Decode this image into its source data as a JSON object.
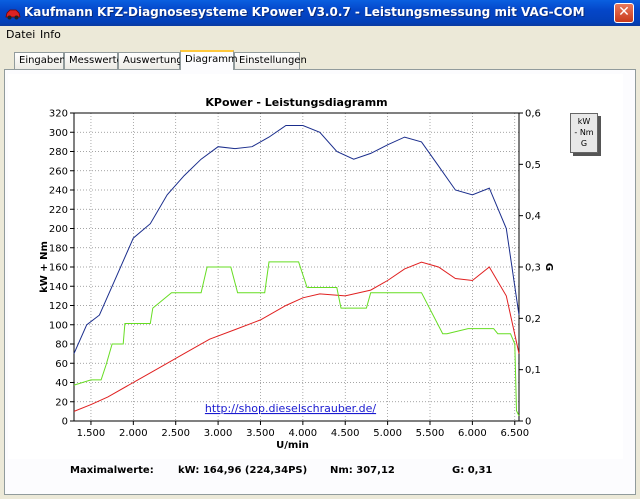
{
  "window": {
    "title": "Kaufmann KFZ-Diagnosesysteme  KPower V3.0.7 - Leistungsmessung mit VAG-COM",
    "close_glyph": "✕"
  },
  "menu": {
    "items": [
      "Datei",
      "Info"
    ]
  },
  "tabs": [
    {
      "label": "Eingaben",
      "active": false
    },
    {
      "label": "Messwerte",
      "active": false
    },
    {
      "label": "Auswertung",
      "active": false
    },
    {
      "label": "Diagramm",
      "active": true
    },
    {
      "label": "Einstellungen",
      "active": false
    }
  ],
  "legend": {
    "items": [
      "kW",
      "- Nm",
      "G"
    ]
  },
  "link": "http://shop.dieselschrauber.de/",
  "status": {
    "label": "Maximalwerte:",
    "kw": "kW: 164,96 (224,34PS)",
    "nm": "Nm: 307,12",
    "g": "G: 0,31"
  },
  "colors": {
    "kw": "#e02020",
    "nm": "#1a2d8c",
    "g": "#66dd22"
  },
  "chart_data": {
    "type": "line",
    "title": "KPower - Leistungsdiagramm",
    "xlabel": "U/min",
    "ylabel_left": "kW + Nm",
    "ylabel_right": "G",
    "xlim": [
      1300,
      6550
    ],
    "ylim_left": [
      0,
      320
    ],
    "ylim_right": [
      0,
      0.6
    ],
    "grid": true,
    "x_ticks": [
      "1.500",
      "2.000",
      "2.500",
      "3.000",
      "3.500",
      "4.000",
      "4.500",
      "5.000",
      "5.500",
      "6.000",
      "6.500"
    ],
    "x_tick_values": [
      1500,
      2000,
      2500,
      3000,
      3500,
      4000,
      4500,
      5000,
      5500,
      6000,
      6500
    ],
    "y_ticks_left": [
      "0",
      "20",
      "40",
      "60",
      "80",
      "100",
      "120",
      "140",
      "160",
      "180",
      "200",
      "220",
      "240",
      "260",
      "280",
      "300",
      "320"
    ],
    "y_tick_values_left": [
      0,
      20,
      40,
      60,
      80,
      100,
      120,
      140,
      160,
      180,
      200,
      220,
      240,
      260,
      280,
      300,
      320
    ],
    "y_ticks_right": [
      "0",
      "0,1",
      "0,2",
      "0,3",
      "0,4",
      "0,5",
      "0,6"
    ],
    "y_tick_values_right": [
      0,
      0.1,
      0.2,
      0.3,
      0.4,
      0.5,
      0.6
    ],
    "series": [
      {
        "name": "Nm",
        "axis": "left",
        "color": "#1a2d8c",
        "x": [
          1300,
          1450,
          1600,
          1800,
          2000,
          2200,
          2400,
          2600,
          2800,
          3000,
          3200,
          3400,
          3600,
          3800,
          4000,
          4200,
          4400,
          4600,
          4800,
          5000,
          5200,
          5400,
          5600,
          5800,
          6000,
          6200,
          6400,
          6550
        ],
        "y": [
          70,
          100,
          110,
          150,
          190,
          205,
          235,
          255,
          272,
          285,
          283,
          285,
          295,
          307,
          307,
          300,
          280,
          272,
          278,
          287,
          295,
          290,
          265,
          240,
          235,
          242,
          200,
          110
        ]
      },
      {
        "name": "kW",
        "axis": "left",
        "color": "#e02020",
        "x": [
          1300,
          1500,
          1700,
          2000,
          2300,
          2600,
          2900,
          3200,
          3500,
          3800,
          4000,
          4200,
          4500,
          4800,
          5000,
          5200,
          5400,
          5600,
          5800,
          6000,
          6200,
          6400,
          6550
        ],
        "y": [
          10,
          17,
          25,
          40,
          55,
          70,
          85,
          95,
          105,
          120,
          128,
          132,
          130,
          136,
          146,
          158,
          165,
          160,
          148,
          146,
          160,
          130,
          70
        ]
      },
      {
        "name": "G",
        "axis": "right",
        "color": "#66dd22",
        "x": [
          1300,
          1500,
          1620,
          1680,
          1750,
          1880,
          1900,
          2200,
          2230,
          2450,
          2500,
          2800,
          2870,
          3150,
          3230,
          3550,
          3600,
          3950,
          4050,
          4400,
          4450,
          4750,
          4800,
          5000,
          5050,
          5350,
          5400,
          5650,
          5700,
          5950,
          6000,
          6250,
          6300,
          6450,
          6500,
          6520,
          6550
        ],
        "y": [
          0.07,
          0.08,
          0.08,
          0.11,
          0.15,
          0.15,
          0.19,
          0.19,
          0.22,
          0.25,
          0.25,
          0.25,
          0.3,
          0.3,
          0.25,
          0.25,
          0.31,
          0.31,
          0.26,
          0.26,
          0.22,
          0.22,
          0.25,
          0.25,
          0.25,
          0.25,
          0.25,
          0.17,
          0.17,
          0.18,
          0.18,
          0.18,
          0.17,
          0.17,
          0.15,
          0.02,
          0.01
        ]
      }
    ]
  }
}
